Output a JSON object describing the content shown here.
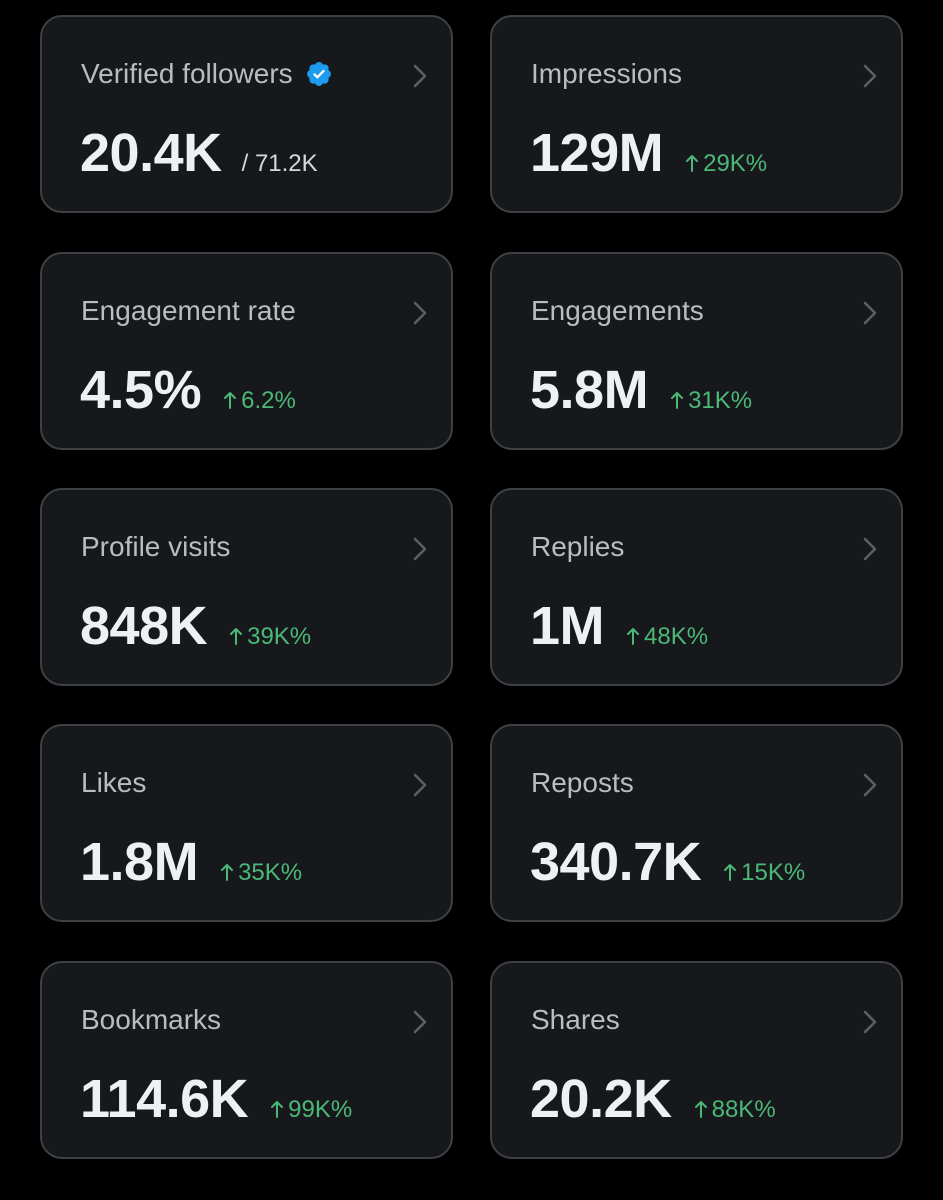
{
  "colors": {
    "background": "#000000",
    "card_bg": "#16181c",
    "card_border": "#3e4144",
    "title": "#b9bdc1",
    "value": "#eef0f1",
    "positive_change": "#4cb877",
    "verified_badge": "#1d9bf0"
  },
  "cards": [
    {
      "title": "Verified followers",
      "value": "20.4K",
      "total": "/ 71.2K",
      "icon": "verified-badge-icon"
    },
    {
      "title": "Impressions",
      "value": "129M",
      "change": "29K%"
    },
    {
      "title": "Engagement rate",
      "value": "4.5%",
      "change": "6.2%"
    },
    {
      "title": "Engagements",
      "value": "5.8M",
      "change": "31K%"
    },
    {
      "title": "Profile visits",
      "value": "848K",
      "change": "39K%"
    },
    {
      "title": "Replies",
      "value": "1M",
      "change": "48K%"
    },
    {
      "title": "Likes",
      "value": "1.8M",
      "change": "35K%"
    },
    {
      "title": "Reposts",
      "value": "340.7K",
      "change": "15K%"
    },
    {
      "title": "Bookmarks",
      "value": "114.6K",
      "change": "99K%"
    },
    {
      "title": "Shares",
      "value": "20.2K",
      "change": "88K%"
    }
  ]
}
